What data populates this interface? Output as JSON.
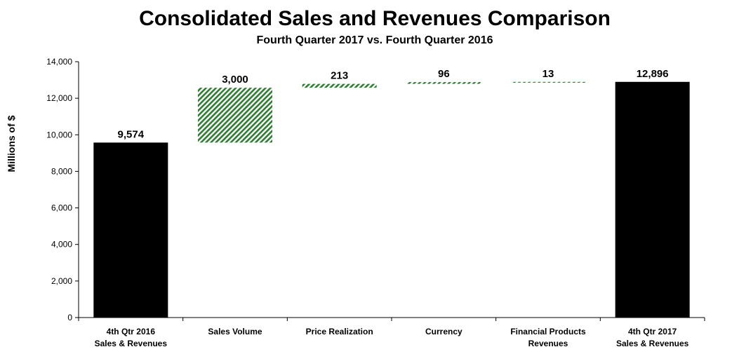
{
  "chart_data": {
    "type": "bar",
    "subtype": "waterfall",
    "title": "Consolidated Sales and Revenues Comparison",
    "subtitle": "Fourth Quarter 2017 vs. Fourth Quarter 2016",
    "xlabel": "",
    "ylabel": "Millions of $",
    "ylim": [
      0,
      14000
    ],
    "yticks": [
      0,
      2000,
      4000,
      6000,
      8000,
      10000,
      12000,
      14000
    ],
    "ytick_labels": [
      "0",
      "2,000",
      "4,000",
      "6,000",
      "8,000",
      "10,000",
      "12,000",
      "14,000"
    ],
    "grid": false,
    "categories": [
      [
        "4th Qtr 2016",
        "Sales & Revenues"
      ],
      [
        "Sales Volume"
      ],
      [
        "Price Realization"
      ],
      [
        "Currency"
      ],
      [
        "Financial Products",
        "Revenues"
      ],
      [
        "4th Qtr 2017",
        "Sales & Revenues"
      ]
    ],
    "bars": [
      {
        "kind": "total",
        "base": 0,
        "value": 9574,
        "label": "9,574"
      },
      {
        "kind": "increase",
        "base": 9574,
        "value": 3000,
        "label": "3,000"
      },
      {
        "kind": "increase",
        "base": 12574,
        "value": 213,
        "label": "213"
      },
      {
        "kind": "increase",
        "base": 12787,
        "value": 96,
        "label": "96"
      },
      {
        "kind": "increase",
        "base": 12883,
        "value": 13,
        "label": "13"
      },
      {
        "kind": "total",
        "base": 0,
        "value": 12896,
        "label": "12,896"
      }
    ],
    "colors": {
      "total": "#000000",
      "increase": "#2e7d32"
    }
  }
}
